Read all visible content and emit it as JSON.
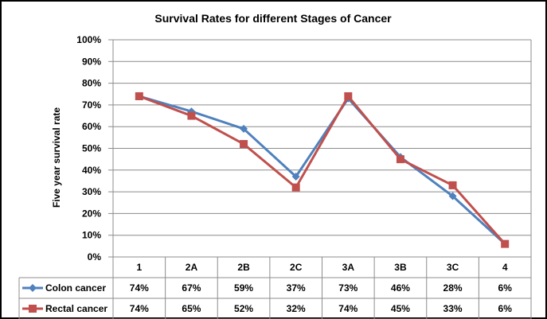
{
  "chart_data": {
    "type": "line",
    "title": "Survival Rates for different Stages of Cancer",
    "ylabel": "Five year survival rate",
    "xlabel": "",
    "categories": [
      "1",
      "2A",
      "2B",
      "2C",
      "3A",
      "3B",
      "3C",
      "4"
    ],
    "ylim": [
      0,
      100
    ],
    "yticks": [
      "0%",
      "10%",
      "20%",
      "30%",
      "40%",
      "50%",
      "60%",
      "70%",
      "80%",
      "90%",
      "100%"
    ],
    "grid": true,
    "legend": "data-table-left",
    "series": [
      {
        "name": "Colon cancer",
        "values": [
          74,
          67,
          59,
          37,
          73,
          46,
          28,
          6
        ],
        "labels": [
          "74%",
          "67%",
          "59%",
          "37%",
          "73%",
          "46%",
          "28%",
          "6%"
        ],
        "color": "#4F81BD",
        "marker": "diamond"
      },
      {
        "name": "Rectal cancer",
        "values": [
          74,
          65,
          52,
          32,
          74,
          45,
          33,
          6
        ],
        "labels": [
          "74%",
          "65%",
          "52%",
          "32%",
          "74%",
          "45%",
          "33%",
          "6%"
        ],
        "color": "#C0504D",
        "marker": "square"
      }
    ]
  }
}
